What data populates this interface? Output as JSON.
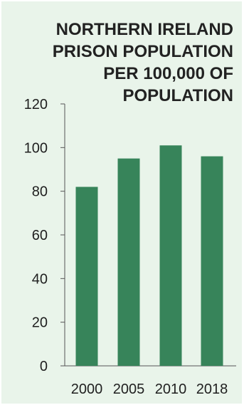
{
  "chart_data": {
    "type": "bar",
    "title_lines": [
      "NORTHERN IRELAND",
      "PRISON POPULATION",
      "PER 100,000 OF",
      "POPULATION"
    ],
    "categories": [
      "2000",
      "2005",
      "2010",
      "2018"
    ],
    "values": [
      82,
      95,
      101,
      96
    ],
    "ylim": [
      0,
      120
    ],
    "yticks": [
      "0",
      "20",
      "40",
      "60",
      "80",
      "100",
      "120"
    ],
    "bar_color": "#37845a",
    "background_color": "#e9f4ea",
    "axis_color": "#555555",
    "grid": false
  }
}
